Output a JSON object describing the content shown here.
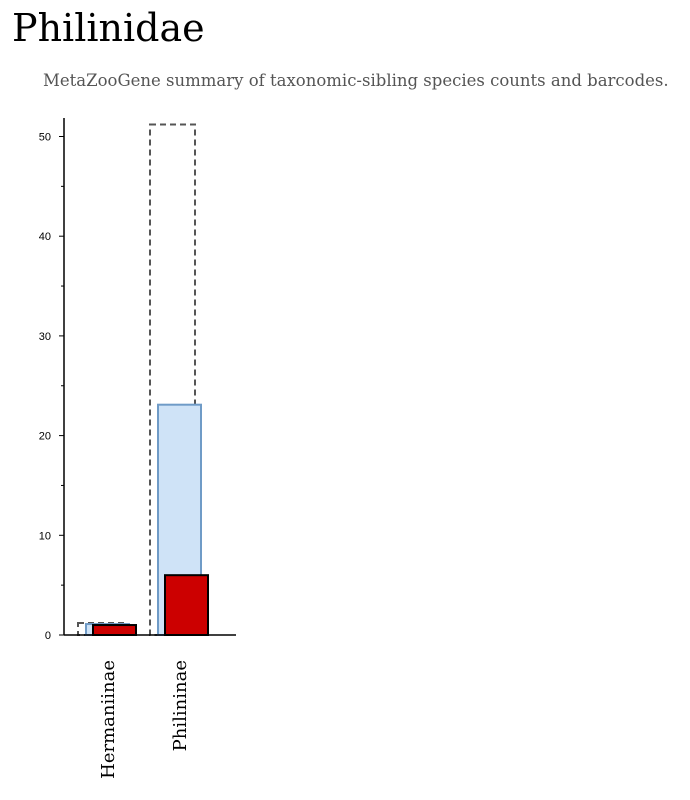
{
  "page": {
    "title": "Philinidae",
    "subtitle": "MetaZooGene summary of taxonomic-sibling species counts and barcodes."
  },
  "colors": {
    "outline": "#555555",
    "species_fill": "#cfe3f7",
    "species_stroke": "#6f9bc7",
    "barcode_fill": "#cc0000",
    "barcode_stroke": "#000000"
  },
  "chart_data": {
    "type": "bar",
    "categories": [
      "Hermaniinae",
      "Philininae"
    ],
    "series": [
      {
        "style": "dashed-outline",
        "values": [
          1.2,
          51.2
        ]
      },
      {
        "style": "light-blue",
        "values": [
          1.1,
          23.1
        ]
      },
      {
        "style": "red",
        "values": [
          1,
          6
        ]
      }
    ],
    "yticks": [
      0,
      10,
      20,
      30,
      40,
      50
    ],
    "ylim": [
      0,
      52
    ],
    "xlabel": "",
    "ylabel": "",
    "grid": false,
    "legend": "none"
  }
}
